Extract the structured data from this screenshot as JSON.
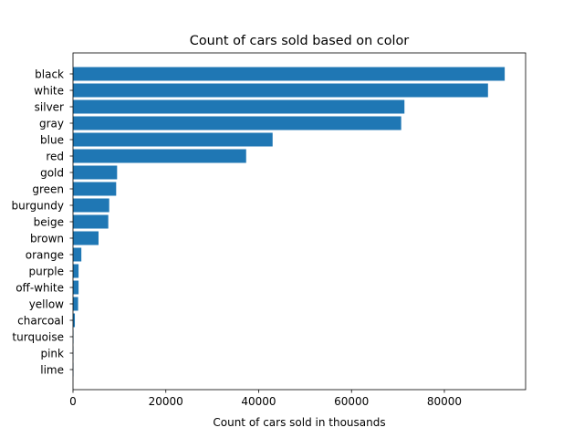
{
  "chart_data": {
    "type": "bar",
    "orientation": "horizontal",
    "title": "Count of cars sold based on color",
    "xlabel": "Count of cars sold in thousands",
    "ylabel": "",
    "xlim": [
      0,
      97500
    ],
    "xticks": [
      0,
      20000,
      40000,
      60000,
      80000
    ],
    "xtick_labels": [
      "0",
      "20000",
      "40000",
      "60000",
      "80000"
    ],
    "categories": [
      "black",
      "white",
      "silver",
      "gray",
      "blue",
      "red",
      "gold",
      "green",
      "burgundy",
      "beige",
      "brown",
      "orange",
      "purple",
      "off-white",
      "yellow",
      "charcoal",
      "turquoise",
      "pink",
      "lime"
    ],
    "values": [
      93000,
      89400,
      71400,
      70700,
      43000,
      37300,
      9500,
      9300,
      7800,
      7600,
      5500,
      1800,
      1200,
      1200,
      1100,
      400,
      100,
      50,
      20
    ],
    "bar_color": "#1f77b4",
    "grid": false,
    "legend": "none"
  }
}
